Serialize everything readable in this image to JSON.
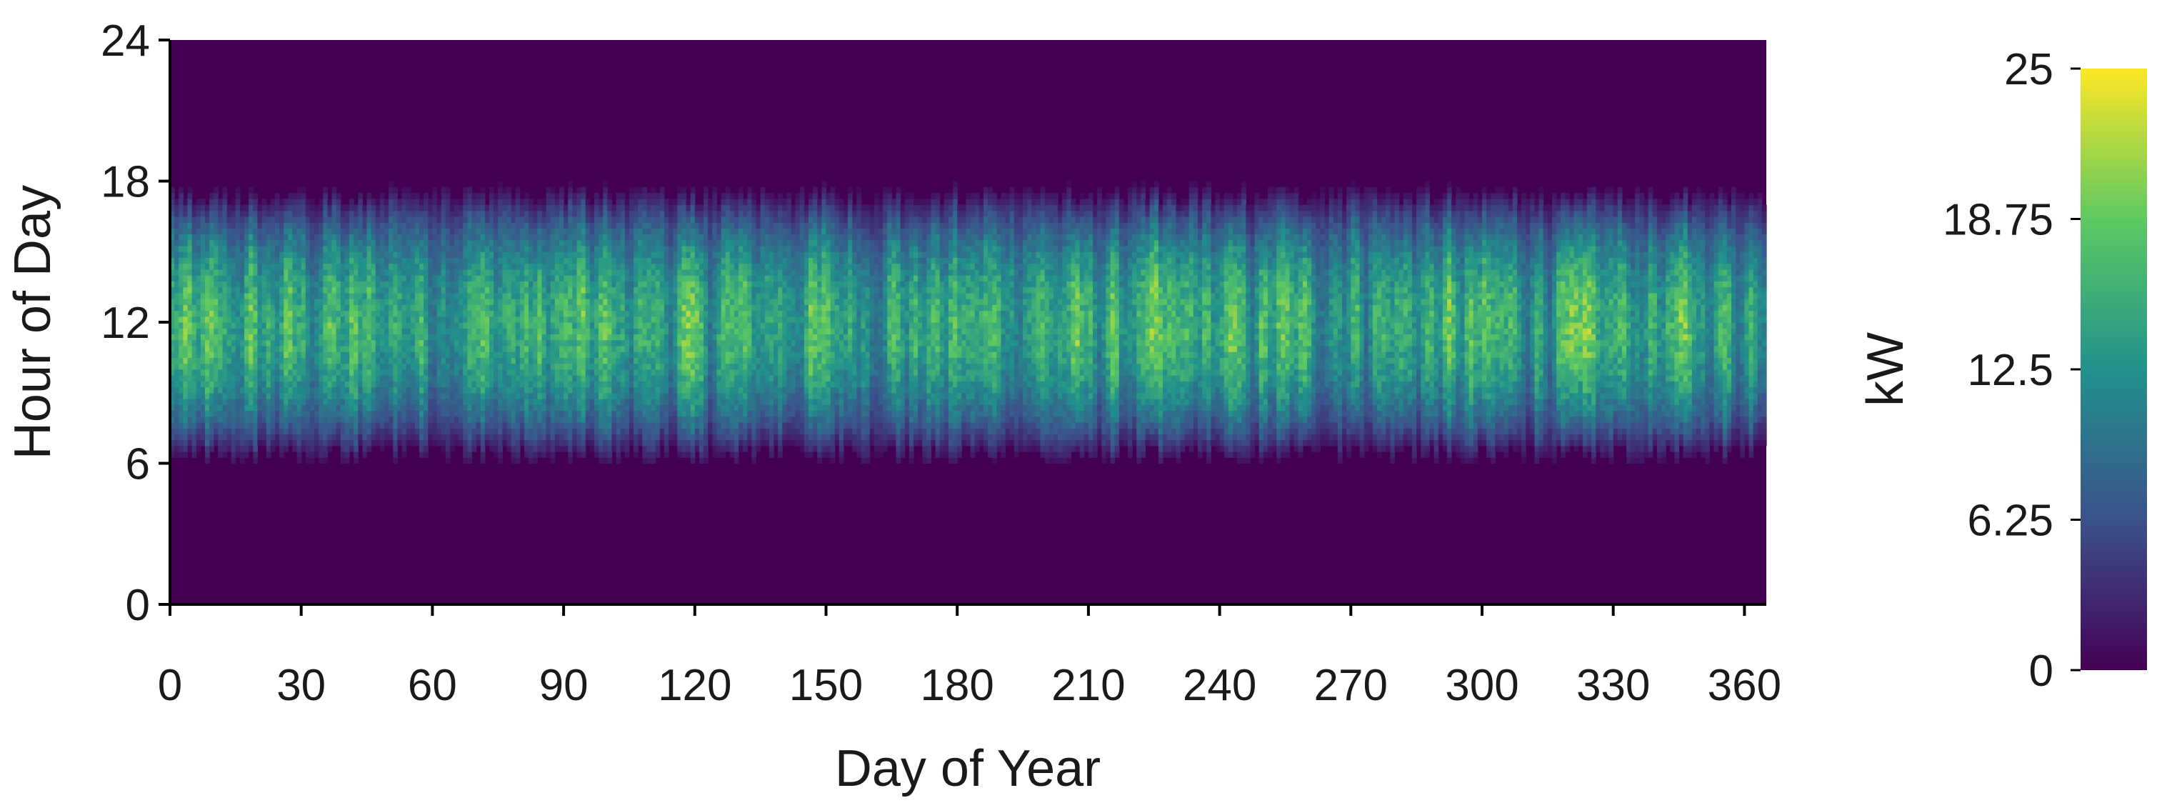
{
  "chart_data": {
    "type": "heatmap",
    "title": "",
    "xlabel": "Day of Year",
    "ylabel": "Hour of Day",
    "xlim": [
      0,
      365
    ],
    "ylim": [
      0,
      24
    ],
    "x_ticks": [
      "0",
      "30",
      "60",
      "90",
      "120",
      "150",
      "180",
      "210",
      "240",
      "270",
      "300",
      "330",
      "360"
    ],
    "y_ticks": [
      "0",
      "6",
      "12",
      "18",
      "24"
    ],
    "colorbar": {
      "label": "kW",
      "range": [
        0,
        25
      ],
      "ticks": [
        "0",
        "6.25",
        "12.5",
        "18.75",
        "25"
      ],
      "colormap": "viridis",
      "colors": [
        "#440154",
        "#3b528b",
        "#21918c",
        "#5ec962",
        "#fde725"
      ]
    },
    "data_summary": {
      "nonzero_hours": [
        6,
        18
      ],
      "peak_hour": 12,
      "typical_peak_kw": 18,
      "max_peak_kw": 22,
      "night_kw": 0
    },
    "grid": false
  }
}
